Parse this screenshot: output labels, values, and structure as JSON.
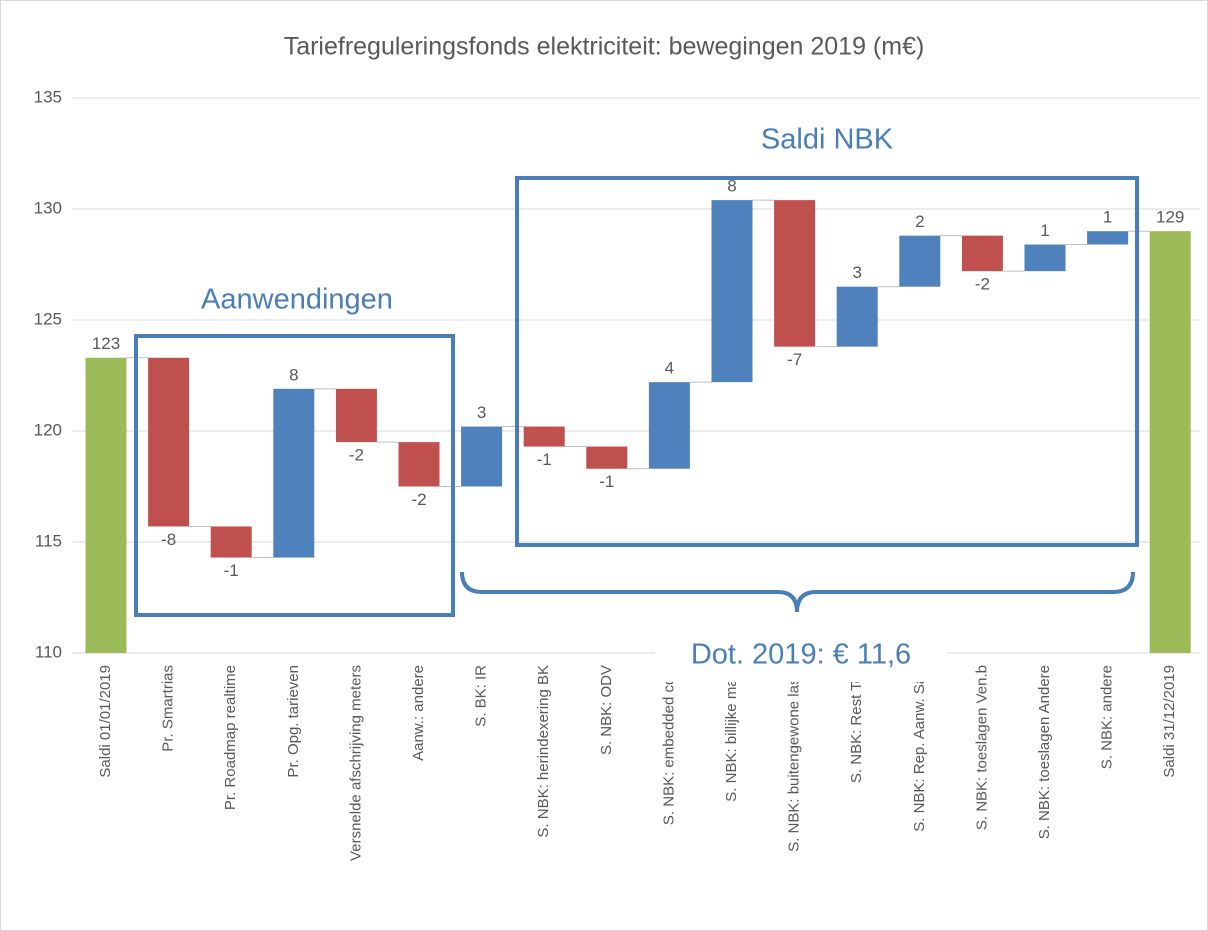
{
  "chart_data": {
    "type": "waterfall",
    "title": "Tariefreguleringsfonds elektriciteit: bewegingen 2019 (m€)",
    "categories": [
      "Saldi 01/01/2019",
      "Pr. Smartrias",
      "Pr. Roadmap realtime",
      "Pr. Opg. tarieven",
      "Versnelde afschrijving meters",
      "Aanw.: andere",
      "S. BK: IR",
      "S. NBK: herindexering BK",
      "S. NBK: ODV",
      "S. NBK: embedded cost",
      "S. NBK: billijke marg",
      "S. NBK: buitengewone laste",
      "S. NBK: Rest Terr",
      "S. NBK: Rep. Aanw. Salc",
      "S. NBK: toeslagen Ven.b",
      "S. NBK: toeslagen Andere",
      "S. NBK: andere",
      "Saldi 31/12/2019"
    ],
    "measure": [
      "absolute",
      "relative",
      "relative",
      "relative",
      "relative",
      "relative",
      "relative",
      "relative",
      "relative",
      "relative",
      "relative",
      "relative",
      "relative",
      "relative",
      "relative",
      "relative",
      "relative",
      "absolute"
    ],
    "values": [
      123.3,
      -7.6,
      -1.4,
      7.6,
      -2.4,
      -2.0,
      2.7,
      -0.9,
      -1.0,
      3.9,
      8.2,
      -6.6,
      2.7,
      2.3,
      -1.6,
      1.2,
      0.6,
      129.0
    ],
    "value_labels": [
      "123",
      "-8",
      "-1",
      "8",
      "-2",
      "-2",
      "3",
      "-1",
      "-1",
      "4",
      "8",
      "-7",
      "3",
      "2",
      "-2",
      "1",
      "1",
      "129"
    ],
    "colors": {
      "increase": "#4f81bd",
      "decrease": "#c0504d",
      "total": "#9bbb59"
    },
    "ylim": [
      110,
      135
    ],
    "yticks": [
      110,
      115,
      120,
      125,
      130,
      135
    ],
    "grid": true,
    "annotations": [
      "Aanwendingen",
      "Saldi NBK",
      "Dot. 2019: € 11,6"
    ]
  }
}
